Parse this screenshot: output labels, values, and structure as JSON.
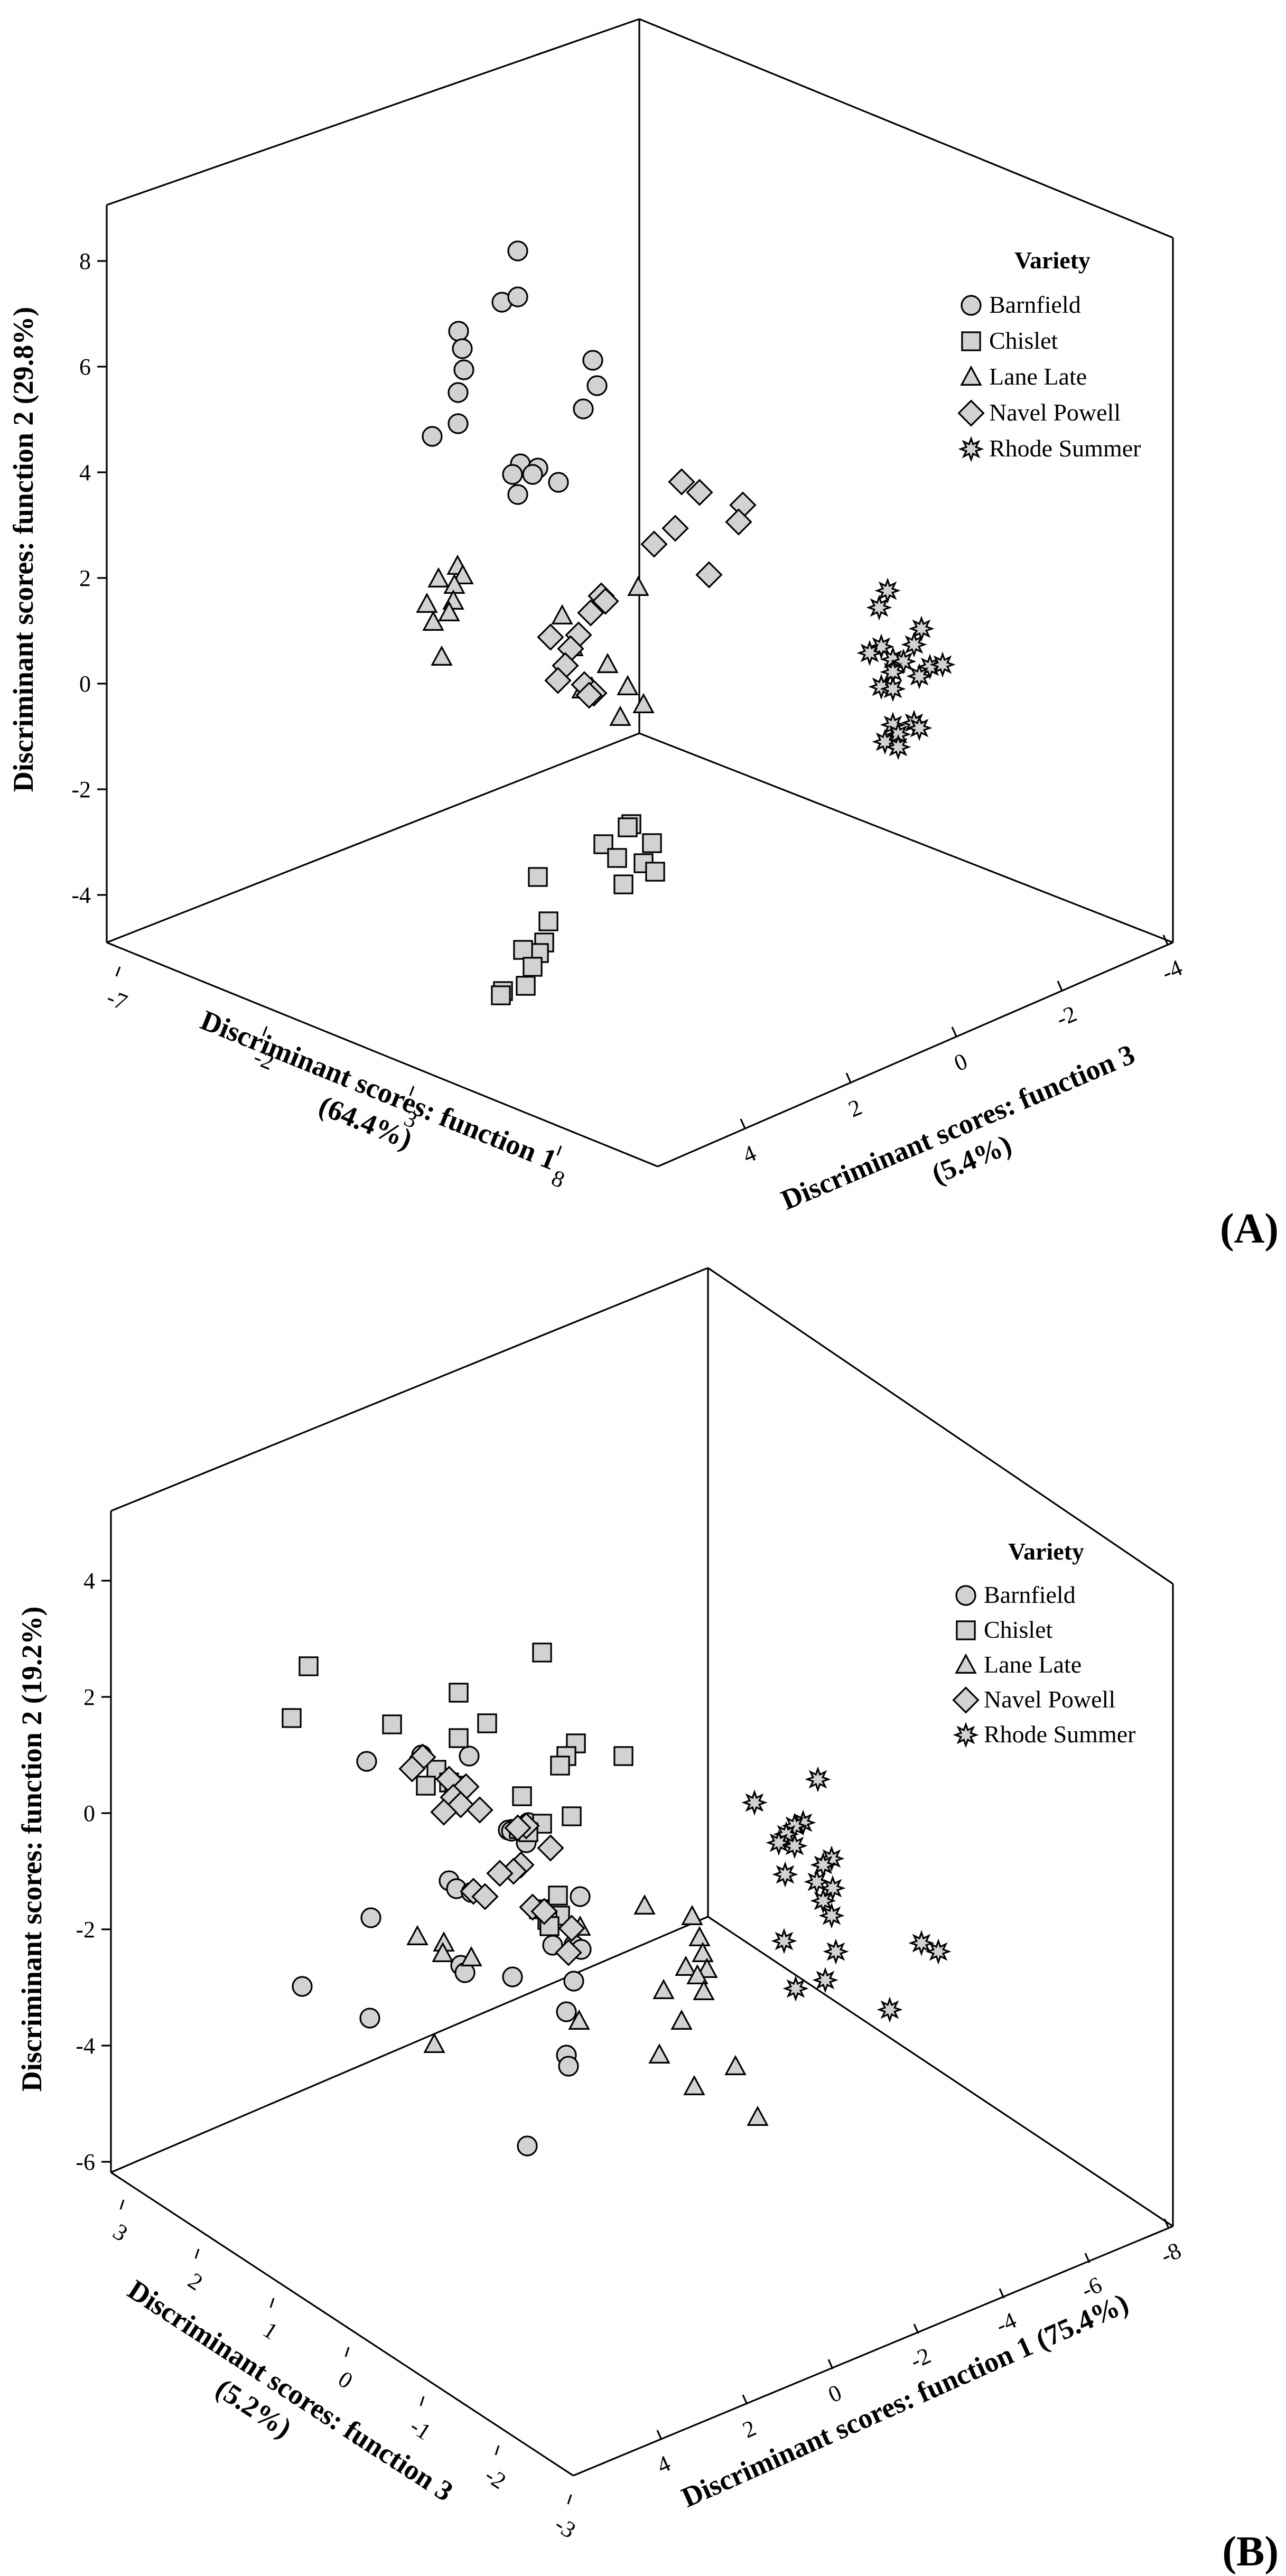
{
  "chart_data": [
    {
      "type": "scatter",
      "panel_label": "(A)",
      "legend_title": "Variety",
      "legend": [
        "Barnfield",
        "Chislet",
        "Lane Late",
        "Navel Powell",
        "Rhode Summer"
      ],
      "axes": {
        "vertical": {
          "label": "Discriminant scores: function 2 (29.8%)",
          "ticks": [
            "-4",
            "-2",
            "0",
            "2",
            "4",
            "6",
            "8"
          ]
        },
        "left_depth": {
          "label_line1": "Discriminant scores: function 1",
          "label_line2": "(64.4%)",
          "ticks": [
            "-7",
            "-2",
            "3",
            "8"
          ]
        },
        "right_depth": {
          "label_line1": "Discriminant scores: function 3",
          "label_line2": "(5.4%)",
          "ticks": [
            "4",
            "2",
            "0",
            "-2",
            "-4"
          ]
        }
      },
      "series": [
        {
          "name": "Barnfield",
          "marker": "circle",
          "points": [
            [
              980,
              475
            ],
            [
              950,
              572
            ],
            [
              980,
              562
            ],
            [
              868,
              627
            ],
            [
              875,
              660
            ],
            [
              878,
              700
            ],
            [
              867,
              743
            ],
            [
              867,
              802
            ],
            [
              818,
              826
            ],
            [
              1122,
              682
            ],
            [
              1130,
              730
            ],
            [
              1104,
              774
            ],
            [
              985,
              878
            ],
            [
              1018,
              886
            ],
            [
              1008,
              898
            ],
            [
              970,
              898
            ],
            [
              980,
              936
            ],
            [
              1057,
              913
            ]
          ]
        },
        {
          "name": "Chislet",
          "marker": "square",
          "points": [
            [
              1195,
              1560
            ],
            [
              1188,
              1566
            ],
            [
              1142,
              1598
            ],
            [
              1168,
              1624
            ],
            [
              1234,
              1596
            ],
            [
              1218,
              1634
            ],
            [
              1240,
              1650
            ],
            [
              1180,
              1674
            ],
            [
              1018,
              1660
            ],
            [
              1038,
              1744
            ],
            [
              1030,
              1784
            ],
            [
              1020,
              1804
            ],
            [
              990,
              1798
            ],
            [
              1008,
              1830
            ],
            [
              995,
              1866
            ],
            [
              952,
              1876
            ],
            [
              948,
              1884
            ]
          ]
        },
        {
          "name": "Lane Late",
          "marker": "triangle",
          "points": [
            [
              866,
              1072
            ],
            [
              830,
              1096
            ],
            [
              876,
              1090
            ],
            [
              860,
              1108
            ],
            [
              858,
              1138
            ],
            [
              808,
              1144
            ],
            [
              850,
              1160
            ],
            [
              820,
              1178
            ],
            [
              836,
              1244
            ],
            [
              1208,
              1112
            ],
            [
              1064,
              1166
            ],
            [
              1084,
              1226
            ],
            [
              1150,
              1258
            ],
            [
              1120,
              1302
            ],
            [
              1102,
              1306
            ],
            [
              1188,
              1300
            ],
            [
              1218,
              1334
            ],
            [
              1174,
              1358
            ]
          ]
        },
        {
          "name": "Navel Powell",
          "marker": "diamond",
          "points": [
            [
              1290,
              912
            ],
            [
              1324,
              932
            ],
            [
              1278,
              1000
            ],
            [
              1406,
              956
            ],
            [
              1398,
              988
            ],
            [
              1238,
              1030
            ],
            [
              1342,
              1088
            ],
            [
              1138,
              1128
            ],
            [
              1146,
              1138
            ],
            [
              1118,
              1160
            ],
            [
              1095,
              1202
            ],
            [
              1080,
              1228
            ],
            [
              1042,
              1206
            ],
            [
              1070,
              1260
            ],
            [
              1106,
              1296
            ],
            [
              1056,
              1288
            ],
            [
              1124,
              1312
            ],
            [
              1115,
              1316
            ]
          ]
        },
        {
          "name": "Rhode Summer",
          "marker": "star",
          "points": [
            [
              1680,
              1118
            ],
            [
              1664,
              1150
            ],
            [
              1744,
              1190
            ],
            [
              1730,
              1220
            ],
            [
              1668,
              1224
            ],
            [
              1646,
              1236
            ],
            [
              1690,
              1248
            ],
            [
              1710,
              1252
            ],
            [
              1760,
              1262
            ],
            [
              1784,
              1258
            ],
            [
              1690,
              1272
            ],
            [
              1740,
              1280
            ],
            [
              1668,
              1300
            ],
            [
              1690,
              1304
            ],
            [
              1730,
              1368
            ],
            [
              1690,
              1372
            ],
            [
              1740,
              1378
            ],
            [
              1700,
              1390
            ],
            [
              1675,
              1404
            ],
            [
              1700,
              1414
            ]
          ]
        }
      ]
    },
    {
      "type": "scatter",
      "panel_label": "(B)",
      "legend_title": "Variety",
      "legend": [
        "Barnfield",
        "Chislet",
        "Lane Late",
        "Navel Powell",
        "Rhode Summer"
      ],
      "axes": {
        "vertical": {
          "label": "Discriminant scores: function 2 (19.2%)",
          "ticks": [
            "-6",
            "-4",
            "-2",
            "0",
            "2",
            "4"
          ]
        },
        "left_depth": {
          "label_line1": "Discriminant scores: function 3",
          "label_line2": "(5.2%)",
          "ticks": [
            "3",
            "2",
            "1",
            "0",
            "-1",
            "-2",
            "-3"
          ]
        },
        "right_depth": {
          "label_line1": "Discriminant scores: function 1 (75.4%)",
          "label_line2": "",
          "ticks": [
            "4",
            "2",
            "0",
            "-2",
            "-4",
            "-6",
            "-8"
          ]
        }
      },
      "series": [
        {
          "name": "Barnfield",
          "marker": "circle",
          "points": [
            [
              694,
              3334
            ],
            [
              798,
              3322
            ],
            [
              888,
              3324
            ],
            [
              962,
              3464
            ],
            [
              968,
              3466
            ],
            [
              996,
              3488
            ],
            [
              1000,
              3450
            ],
            [
              850,
              3560
            ],
            [
              864,
              3575
            ],
            [
              892,
              3582
            ],
            [
              1098,
              3590
            ],
            [
              702,
              3630
            ],
            [
              1046,
              3682
            ],
            [
              1086,
              3682
            ],
            [
              1100,
              3690
            ],
            [
              872,
              3720
            ],
            [
              1086,
              3750
            ],
            [
              572,
              3760
            ],
            [
              880,
              3734
            ],
            [
              970,
              3742
            ],
            [
              1072,
              3808
            ],
            [
              700,
              3820
            ],
            [
              1072,
              3890
            ],
            [
              1076,
              3911
            ],
            [
              998,
              4062
            ]
          ]
        },
        {
          "name": "Chislet",
          "marker": "square",
          "points": [
            [
              1026,
              3128
            ],
            [
              584,
              3154
            ],
            [
              552,
              3252
            ],
            [
              868,
              3204
            ],
            [
              742,
              3264
            ],
            [
              922,
              3262
            ],
            [
              868,
              3290
            ],
            [
              1090,
              3300
            ],
            [
              1180,
              3324
            ],
            [
              1072,
              3324
            ],
            [
              1060,
              3342
            ],
            [
              826,
              3350
            ],
            [
              850,
              3374
            ],
            [
              806,
              3380
            ],
            [
              860,
              3380
            ],
            [
              988,
              3400
            ],
            [
              1082,
              3438
            ],
            [
              1026,
              3452
            ],
            [
              982,
              3462
            ],
            [
              1000,
              3468
            ],
            [
              1056,
              3588
            ],
            [
              1020,
              3614
            ],
            [
              1060,
              3626
            ],
            [
              1036,
              3634
            ],
            [
              1040,
              3646
            ]
          ]
        },
        {
          "name": "Lane Late",
          "marker": "triangle",
          "points": [
            [
              1220,
              3608
            ],
            [
              1310,
              3628
            ],
            [
              1098,
              3648
            ],
            [
              790,
              3666
            ],
            [
              1324,
              3668
            ],
            [
              840,
              3678
            ],
            [
              838,
              3698
            ],
            [
              892,
              3706
            ],
            [
              1330,
              3698
            ],
            [
              1298,
              3724
            ],
            [
              1338,
              3728
            ],
            [
              1320,
              3740
            ],
            [
              1256,
              3768
            ],
            [
              1332,
              3770
            ],
            [
              1096,
              3826
            ],
            [
              1290,
              3826
            ],
            [
              822,
              3870
            ],
            [
              1248,
              3890
            ],
            [
              1392,
              3912
            ],
            [
              1314,
              3950
            ],
            [
              1434,
              4008
            ]
          ]
        },
        {
          "name": "Navel Powell",
          "marker": "diamond",
          "points": [
            [
              800,
              3326
            ],
            [
              780,
              3348
            ],
            [
              850,
              3368
            ],
            [
              882,
              3382
            ],
            [
              858,
              3402
            ],
            [
              872,
              3416
            ],
            [
              908,
              3426
            ],
            [
              840,
              3430
            ],
            [
              996,
              3456
            ],
            [
              980,
              3460
            ],
            [
              1042,
              3498
            ],
            [
              986,
              3530
            ],
            [
              972,
              3542
            ],
            [
              946,
              3546
            ],
            [
              896,
              3580
            ],
            [
              918,
              3590
            ],
            [
              1008,
              3610
            ],
            [
              1030,
              3618
            ],
            [
              1082,
              3650
            ],
            [
              1076,
              3696
            ]
          ]
        },
        {
          "name": "Rhode Summer",
          "marker": "star",
          "points": [
            [
              1548,
              3368
            ],
            [
              1428,
              3412
            ],
            [
              1520,
              3450
            ],
            [
              1504,
              3456
            ],
            [
              1488,
              3472
            ],
            [
              1474,
              3488
            ],
            [
              1504,
              3494
            ],
            [
              1574,
              3518
            ],
            [
              1558,
              3530
            ],
            [
              1486,
              3548
            ],
            [
              1546,
              3562
            ],
            [
              1576,
              3574
            ],
            [
              1558,
              3598
            ],
            [
              1574,
              3626
            ],
            [
              1484,
              3674
            ],
            [
              1744,
              3678
            ],
            [
              1776,
              3694
            ],
            [
              1582,
              3694
            ],
            [
              1562,
              3748
            ],
            [
              1506,
              3764
            ],
            [
              1684,
              3804
            ]
          ]
        }
      ]
    }
  ]
}
